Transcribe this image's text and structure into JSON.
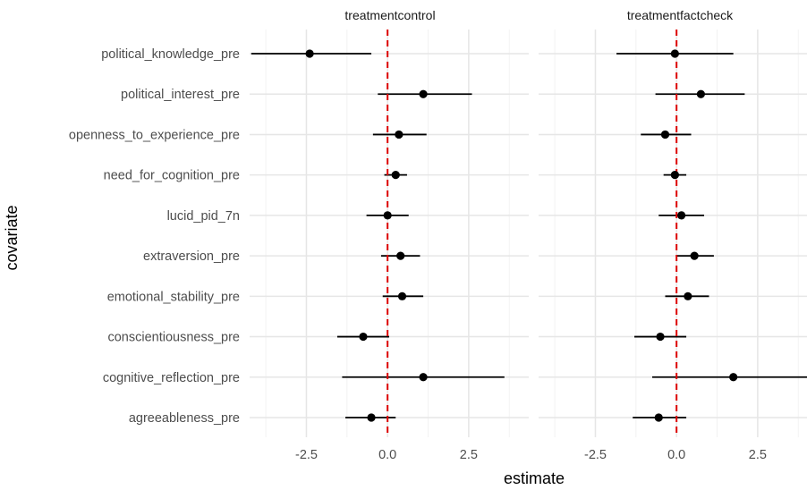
{
  "chart_data": {
    "type": "scatter",
    "xlabel": "estimate",
    "ylabel": "covariate",
    "xlim": [
      -4.25,
      4.35
    ],
    "x_ticks": [
      "-2.5",
      "0.0",
      "2.5"
    ],
    "x_tick_values": [
      -2.5,
      0,
      2.5
    ],
    "reference_line": {
      "x": 0,
      "style": "dashed",
      "color": "#dd0000"
    },
    "grid": true,
    "covariates": [
      "political_knowledge_pre",
      "political_interest_pre",
      "openness_to_experience_pre",
      "need_for_cognition_pre",
      "lucid_pid_7n",
      "extraversion_pre",
      "emotional_stability_pre",
      "conscientiousness_pre",
      "cognitive_reflection_pre",
      "agreeableness_pre"
    ],
    "facets": [
      {
        "title": "treatmentcontrol",
        "estimates": [
          -2.4,
          1.1,
          0.35,
          0.25,
          0.0,
          0.4,
          0.45,
          -0.75,
          1.1,
          -0.5
        ],
        "lower": [
          -4.2,
          -0.3,
          -0.45,
          -0.1,
          -0.65,
          -0.2,
          -0.15,
          -1.55,
          -1.4,
          -1.3
        ],
        "upper": [
          -0.5,
          2.6,
          1.2,
          0.6,
          0.65,
          1.0,
          1.1,
          0.05,
          3.6,
          0.25
        ]
      },
      {
        "title": "treatmentfactcheck",
        "estimates": [
          -0.05,
          0.75,
          -0.35,
          -0.05,
          0.15,
          0.55,
          0.35,
          -0.5,
          1.75,
          -0.55
        ],
        "lower": [
          -1.85,
          -0.65,
          -1.1,
          -0.4,
          -0.55,
          0.0,
          -0.35,
          -1.3,
          -0.75,
          -1.35
        ],
        "upper": [
          1.75,
          2.1,
          0.45,
          0.3,
          0.85,
          1.15,
          1.0,
          0.3,
          4.3,
          0.3
        ]
      }
    ]
  }
}
